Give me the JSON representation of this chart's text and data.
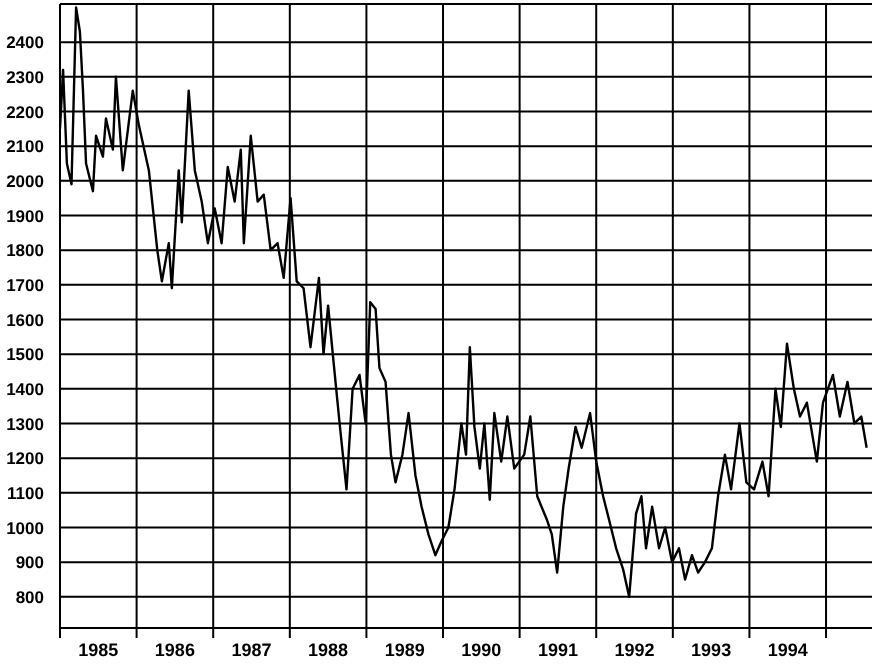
{
  "chart_data": {
    "type": "line",
    "color": "#000000",
    "grid": true,
    "legend": false,
    "marker": "none",
    "line_style": "solid",
    "xlim": [
      1985,
      1995.6
    ],
    "ylim": [
      710,
      2510
    ],
    "xticks": [
      {
        "value": 1985,
        "label": null
      },
      {
        "value": 1985.5,
        "label": "1985"
      },
      {
        "value": 1986,
        "label": null
      },
      {
        "value": 1986.5,
        "label": "1986"
      },
      {
        "value": 1987,
        "label": null
      },
      {
        "value": 1987.5,
        "label": "1987"
      },
      {
        "value": 1988,
        "label": null
      },
      {
        "value": 1988.5,
        "label": "1988"
      },
      {
        "value": 1989,
        "label": null
      },
      {
        "value": 1989.5,
        "label": "1989"
      },
      {
        "value": 1990,
        "label": null
      },
      {
        "value": 1990.5,
        "label": "1990"
      },
      {
        "value": 1991,
        "label": null
      },
      {
        "value": 1991.5,
        "label": "1991"
      },
      {
        "value": 1992,
        "label": null
      },
      {
        "value": 1992.5,
        "label": "1992"
      },
      {
        "value": 1993,
        "label": null
      },
      {
        "value": 1993.5,
        "label": "1993"
      },
      {
        "value": 1994,
        "label": null
      },
      {
        "value": 1994.5,
        "label": "1994"
      },
      {
        "value": 1995,
        "label": null
      }
    ],
    "yticks": [
      800,
      900,
      1000,
      1100,
      1200,
      1300,
      1400,
      1500,
      1600,
      1700,
      1800,
      1900,
      2000,
      2100,
      2200,
      2300,
      2400
    ],
    "x": [
      1985.0,
      1985.04,
      1985.09,
      1985.15,
      1985.21,
      1985.26,
      1985.3,
      1985.34,
      1985.43,
      1985.47,
      1985.56,
      1985.6,
      1985.69,
      1985.73,
      1985.82,
      1985.95,
      1986.03,
      1986.16,
      1986.27,
      1986.33,
      1986.42,
      1986.46,
      1986.55,
      1986.59,
      1986.68,
      1986.76,
      1986.85,
      1986.93,
      1987.02,
      1987.11,
      1987.19,
      1987.28,
      1987.36,
      1987.4,
      1987.49,
      1987.58,
      1987.66,
      1987.75,
      1987.84,
      1987.92,
      1988.01,
      1988.09,
      1988.18,
      1988.27,
      1988.38,
      1988.44,
      1988.5,
      1988.57,
      1988.65,
      1988.74,
      1988.82,
      1988.91,
      1988.99,
      1989.05,
      1989.12,
      1989.17,
      1989.25,
      1989.32,
      1989.38,
      1989.47,
      1989.55,
      1989.64,
      1989.72,
      1989.81,
      1989.9,
      1989.98,
      1990.07,
      1990.15,
      1990.24,
      1990.3,
      1990.35,
      1990.41,
      1990.48,
      1990.54,
      1990.61,
      1990.67,
      1990.76,
      1990.84,
      1990.93,
      1991.06,
      1991.14,
      1991.23,
      1991.36,
      1991.42,
      1991.49,
      1991.57,
      1991.64,
      1991.73,
      1991.81,
      1991.92,
      1992.0,
      1992.09,
      1992.17,
      1992.26,
      1992.35,
      1992.43,
      1992.52,
      1992.59,
      1992.65,
      1992.73,
      1992.82,
      1992.9,
      1992.99,
      1993.08,
      1993.16,
      1993.25,
      1993.33,
      1993.42,
      1993.51,
      1993.59,
      1993.68,
      1993.76,
      1993.87,
      1993.96,
      1994.06,
      1994.17,
      1994.25,
      1994.34,
      1994.41,
      1994.49,
      1994.58,
      1994.66,
      1994.75,
      1994.88,
      1994.96,
      1995.09,
      1995.18,
      1995.28,
      1995.37,
      1995.46,
      1995.53
    ],
    "values": [
      2150,
      2320,
      2050,
      1990,
      2500,
      2430,
      2260,
      2050,
      1970,
      2130,
      2070,
      2180,
      2090,
      2300,
      2030,
      2260,
      2160,
      2030,
      1800,
      1710,
      1820,
      1690,
      2030,
      1880,
      2260,
      2030,
      1940,
      1820,
      1920,
      1820,
      2040,
      1940,
      2090,
      1820,
      2130,
      1940,
      1960,
      1800,
      1820,
      1720,
      1950,
      1710,
      1690,
      1520,
      1720,
      1500,
      1640,
      1480,
      1300,
      1110,
      1400,
      1440,
      1300,
      1650,
      1630,
      1460,
      1420,
      1210,
      1130,
      1210,
      1330,
      1150,
      1060,
      980,
      920,
      960,
      1000,
      1110,
      1300,
      1210,
      1520,
      1290,
      1170,
      1300,
      1080,
      1330,
      1190,
      1320,
      1170,
      1210,
      1320,
      1090,
      1020,
      980,
      870,
      1060,
      1170,
      1290,
      1230,
      1330,
      1190,
      1090,
      1020,
      940,
      880,
      800,
      1040,
      1090,
      940,
      1060,
      940,
      1000,
      900,
      940,
      850,
      920,
      870,
      900,
      940,
      1090,
      1210,
      1110,
      1300,
      1130,
      1110,
      1190,
      1090,
      1400,
      1290,
      1530,
      1400,
      1320,
      1360,
      1190,
      1360,
      1440,
      1320,
      1420,
      1300,
      1320,
      1230
    ]
  }
}
